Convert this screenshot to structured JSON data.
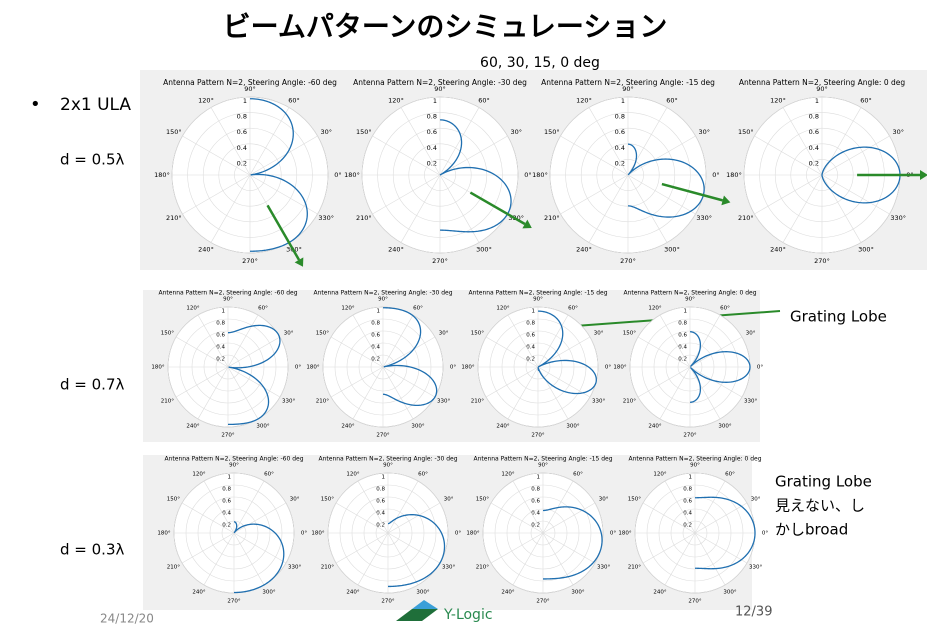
{
  "title": "ビームパターンのシミュレーション",
  "subtitle": "60, 30, 15, 0 deg",
  "bullet": "2x1 ULA",
  "radial_ticks": [
    0.2,
    0.4,
    0.6,
    0.8,
    1
  ],
  "angle_labels": [
    {
      "value": 0,
      "label": "0°"
    },
    {
      "value": 30,
      "label": "30°"
    },
    {
      "value": 60,
      "label": "60°"
    },
    {
      "value": 90,
      "label": "90°"
    },
    {
      "value": 120,
      "label": "120°"
    },
    {
      "value": 150,
      "label": "150°"
    },
    {
      "value": 180,
      "label": "180°"
    },
    {
      "value": 210,
      "label": "210°"
    },
    {
      "value": 240,
      "label": "240°"
    },
    {
      "value": 270,
      "label": "270°"
    },
    {
      "value": 300,
      "label": "300°"
    },
    {
      "value": 330,
      "label": "330°"
    }
  ],
  "rows": [
    {
      "d": {
        "value": 0.5,
        "label": "d = 0.5λ"
      },
      "plots": [
        {
          "title": "Antenna Pattern N=2, Steering Angle: -60 deg",
          "steering": -60
        },
        {
          "title": "Antenna Pattern N=2, Steering Angle: -30 deg",
          "steering": -30
        },
        {
          "title": "Antenna Pattern N=2, Steering Angle: -15 deg",
          "steering": -15
        },
        {
          "title": "Antenna Pattern N=2, Steering Angle: 0 deg",
          "steering": 0
        }
      ]
    },
    {
      "d": {
        "value": 0.7,
        "label": "d = 0.7λ"
      },
      "plots": [
        {
          "title": "Antenna Pattern N=2, Steering Angle: -60 deg",
          "steering": -60
        },
        {
          "title": "Antenna Pattern N=2, Steering Angle: -30 deg",
          "steering": -30
        },
        {
          "title": "Antenna Pattern N=2, Steering Angle: -15 deg",
          "steering": -15
        },
        {
          "title": "Antenna Pattern N=2, Steering Angle: 0 deg",
          "steering": 0
        }
      ]
    },
    {
      "d": {
        "value": 0.3,
        "label": "d = 0.3λ"
      },
      "plots": [
        {
          "title": "Antenna Pattern N=2, Steering Angle: -60 deg",
          "steering": -60
        },
        {
          "title": "Antenna Pattern N=2, Steering Angle: -30 deg",
          "steering": -30
        },
        {
          "title": "Antenna Pattern N=2, Steering Angle: -15 deg",
          "steering": -15
        },
        {
          "title": "Antenna Pattern N=2, Steering Angle: 0 deg",
          "steering": 0
        }
      ]
    }
  ],
  "annotations": {
    "grating": "Grating Lobe",
    "note": [
      "Grating Lobe",
      "見えない、し",
      "かしbroad"
    ]
  },
  "footer": {
    "date": "24/12/20",
    "logo": "Y-Logic",
    "page": "12/39"
  }
}
